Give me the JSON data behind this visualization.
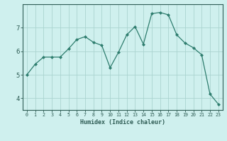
{
  "xlabel": "Humidex (Indice chaleur)",
  "x": [
    0,
    1,
    2,
    3,
    4,
    5,
    6,
    7,
    8,
    9,
    10,
    11,
    12,
    13,
    14,
    15,
    16,
    17,
    18,
    19,
    20,
    21,
    22,
    23
  ],
  "y": [
    5.0,
    5.45,
    5.75,
    5.75,
    5.75,
    6.1,
    6.5,
    6.62,
    6.38,
    6.25,
    5.3,
    5.95,
    6.7,
    7.05,
    6.3,
    7.6,
    7.65,
    7.55,
    6.7,
    6.35,
    6.15,
    5.85,
    4.18,
    3.75
  ],
  "line_color": "#2e7d6e",
  "marker_color": "#2e7d6e",
  "bg_color": "#cff0ee",
  "grid_color": "#aad4d0",
  "tick_color": "#2e5c54",
  "ylim": [
    3.5,
    8.0
  ],
  "yticks": [
    4,
    5,
    6,
    7
  ],
  "xticks": [
    0,
    1,
    2,
    3,
    4,
    5,
    6,
    7,
    8,
    9,
    10,
    11,
    12,
    13,
    14,
    15,
    16,
    17,
    18,
    19,
    20,
    21,
    22,
    23
  ]
}
